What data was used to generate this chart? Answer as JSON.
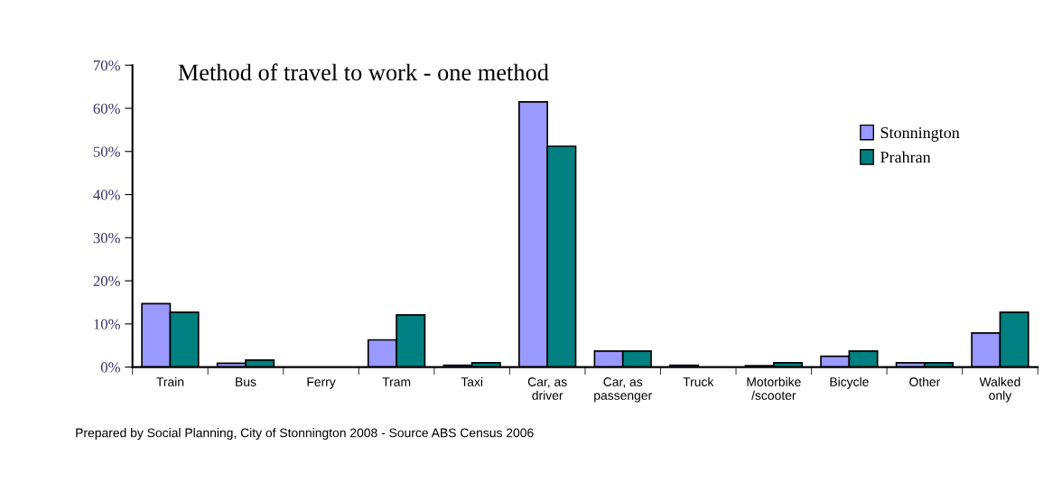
{
  "chart_data": {
    "type": "bar",
    "title": "Method of travel to work - one method",
    "categories": [
      "Train",
      "Bus",
      "Ferry",
      "Tram",
      "Taxi",
      "Car, as\ndriver",
      "Car, as\npassenger",
      "Truck",
      "Motorbike\n/scooter",
      "Bicycle",
      "Other",
      "Walked\nonly"
    ],
    "series": [
      {
        "name": "Stonnington",
        "color": "#9999ff",
        "values": [
          14.7,
          0.9,
          0,
          6.3,
          0.4,
          61.5,
          3.7,
          0.4,
          0.3,
          2.5,
          1.0,
          7.9
        ]
      },
      {
        "name": "Prahran",
        "color": "#008080",
        "values": [
          12.7,
          1.6,
          0,
          12.1,
          1.0,
          51.2,
          3.7,
          0,
          1.0,
          3.7,
          1.0,
          12.7
        ]
      }
    ],
    "ylim": [
      0,
      70
    ],
    "yticks": [
      {
        "value": 0,
        "label": "0%"
      },
      {
        "value": 10,
        "label": "10%"
      },
      {
        "value": 20,
        "label": "20%"
      },
      {
        "value": 30,
        "label": "30%"
      },
      {
        "value": 40,
        "label": "40%"
      },
      {
        "value": 50,
        "label": "50%"
      },
      {
        "value": 60,
        "label": "60%"
      },
      {
        "value": 70,
        "label": "70%"
      }
    ],
    "grid": false,
    "legend": "top right",
    "annotations": [
      "Prepared by Social Planning, City of Stonnington 2008 - Source ABS Census 2006"
    ]
  }
}
